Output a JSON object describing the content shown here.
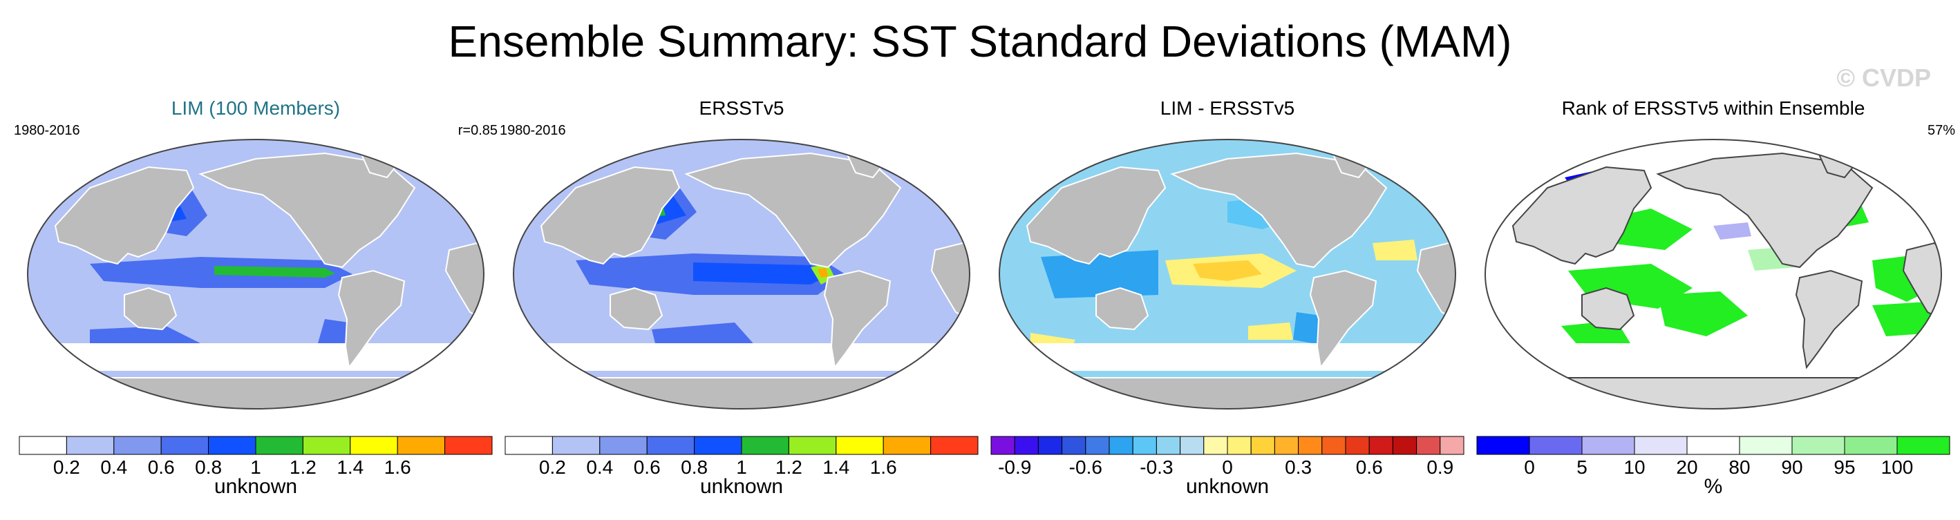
{
  "title": "Ensemble Summary: SST Standard Deviations (MAM)",
  "watermark": "© CVDP",
  "chart_data": [
    {
      "type": "heatmap",
      "title": "LIM (100 Members)",
      "left_label": "1980-2016",
      "right_label": "r=0.85",
      "colorbar": {
        "colors": [
          "#ffffff",
          "#b4c3f5",
          "#8198ef",
          "#4a6ef0",
          "#1052ff",
          "#22bb33",
          "#99ee22",
          "#ffff00",
          "#ffaa00",
          "#ff3d1a"
        ],
        "ticks": [
          "0.2",
          "0.4",
          "0.6",
          "0.8",
          "1",
          "1.2",
          "1.4",
          "1.6"
        ],
        "label": "unknown"
      }
    },
    {
      "type": "heatmap",
      "title": "ERSSTv5",
      "left_label": "1980-2016",
      "right_label": "",
      "colorbar": {
        "colors": [
          "#ffffff",
          "#b4c3f5",
          "#8198ef",
          "#4a6ef0",
          "#1052ff",
          "#22bb33",
          "#99ee22",
          "#ffff00",
          "#ffaa00",
          "#ff3d1a"
        ],
        "ticks": [
          "0.2",
          "0.4",
          "0.6",
          "0.8",
          "1",
          "1.2",
          "1.4",
          "1.6"
        ],
        "label": "unknown"
      }
    },
    {
      "type": "heatmap",
      "title": "LIM - ERSSTv5",
      "left_label": "",
      "right_label": "",
      "colorbar": {
        "colors": [
          "#7a10e0",
          "#3b10f0",
          "#1a2ae8",
          "#2f55e0",
          "#3f7ae6",
          "#2ea3f0",
          "#5cc6f6",
          "#8fd5f2",
          "#b8dcf0",
          "#fffaa8",
          "#fff27a",
          "#ffd23a",
          "#ffb22a",
          "#ff8a1a",
          "#f5601a",
          "#e83a1a",
          "#d11a1a",
          "#bf1010",
          "#e05050",
          "#f5a8a8"
        ],
        "ticks": [
          "-0.9",
          "-0.6",
          "-0.3",
          "0",
          "0.3",
          "0.6",
          "0.9"
        ],
        "label": "unknown"
      }
    },
    {
      "type": "heatmap",
      "title": "Rank of ERSSTv5 within Ensemble",
      "left_label": "",
      "right_label": "57%",
      "colorbar": {
        "colors": [
          "#0000ff",
          "#6a6af0",
          "#b2b2f4",
          "#e2e2fa",
          "#ffffff",
          "#e4ffe4",
          "#b2f5b2",
          "#8eee8e",
          "#22ee22"
        ],
        "ticks": [
          "0",
          "5",
          "10",
          "20",
          "80",
          "90",
          "95",
          "100"
        ],
        "label": "%"
      }
    }
  ]
}
